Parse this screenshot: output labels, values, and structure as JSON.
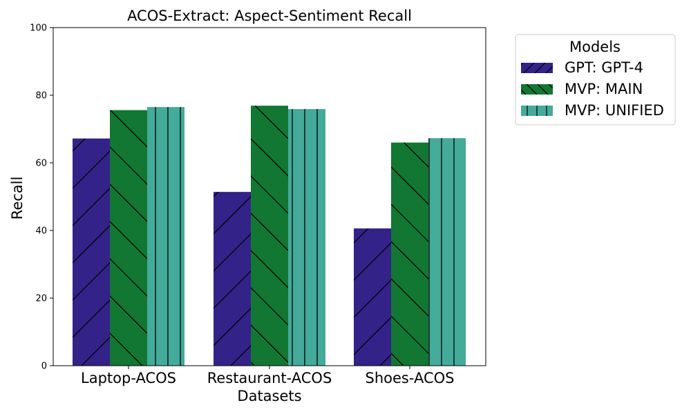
{
  "chart_data": {
    "type": "bar",
    "title": "ACOS-Extract: Aspect-Sentiment Recall",
    "xlabel": "Datasets",
    "ylabel": "Recall",
    "ylim": [
      0,
      100
    ],
    "yticks": [
      0,
      20,
      40,
      60,
      80,
      100
    ],
    "categories": [
      "Laptop-ACOS",
      "Restaurant-ACOS",
      "Shoes-ACOS"
    ],
    "series": [
      {
        "name": "GPT: GPT-4",
        "values": [
          67.2,
          51.4,
          40.6
        ],
        "color": "#332288",
        "hatch": "forward-diagonal"
      },
      {
        "name": "MVP: MAIN",
        "values": [
          75.6,
          76.9,
          66.0
        ],
        "color": "#117733",
        "hatch": "back-diagonal"
      },
      {
        "name": "MVP: UNIFIED",
        "values": [
          76.5,
          75.9,
          67.3
        ],
        "color": "#44AA99",
        "hatch": "vertical"
      }
    ],
    "legend": {
      "title": "Models",
      "placement": "outside-top-right"
    },
    "grid": false
  }
}
